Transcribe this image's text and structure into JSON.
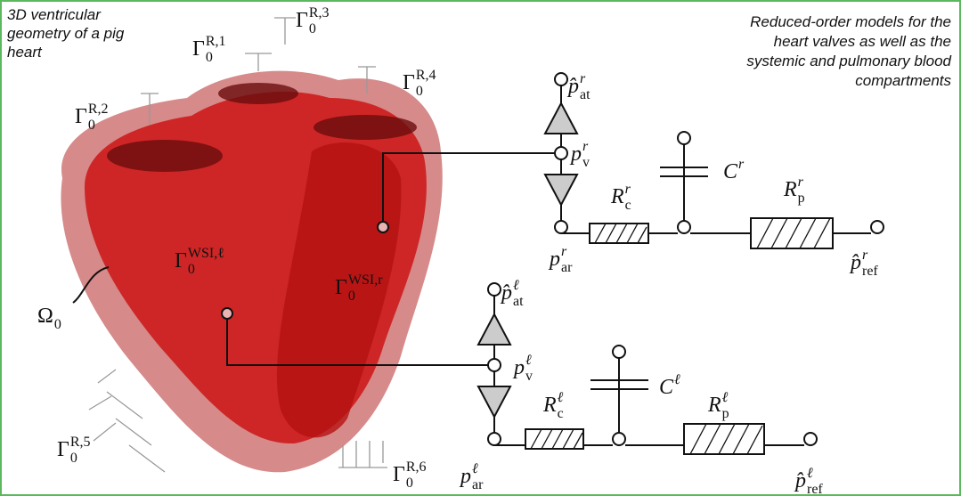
{
  "annotations": {
    "left": [
      "3D ventricular",
      "geometry of a pig",
      "heart"
    ],
    "right": [
      "Reduced-order models for the",
      "heart valves as well as the",
      "systemic and pulmonary blood",
      "compartments"
    ]
  },
  "heart": {
    "boundaries": [
      {
        "base": "Γ",
        "sub": "0",
        "sup": "R,1"
      },
      {
        "base": "Γ",
        "sub": "0",
        "sup": "R,2"
      },
      {
        "base": "Γ",
        "sub": "0",
        "sup": "R,3"
      },
      {
        "base": "Γ",
        "sub": "0",
        "sup": "R,4"
      },
      {
        "base": "Γ",
        "sub": "0",
        "sup": "R,5"
      },
      {
        "base": "Γ",
        "sub": "0",
        "sup": "R,6"
      },
      {
        "base": "Γ",
        "sub": "0",
        "sup": "WSI,ℓ"
      },
      {
        "base": "Γ",
        "sub": "0",
        "sup": "WSI,r"
      }
    ],
    "domain": {
      "base": "Ω",
      "sub": "0"
    }
  },
  "circuits": {
    "right": {
      "p_at": {
        "base": "p̂",
        "sup": "r",
        "sub": "at"
      },
      "p_v": {
        "base": "p",
        "sup": "r",
        "sub": "v"
      },
      "R_c": {
        "base": "R",
        "sup": "r",
        "sub": "c"
      },
      "C": {
        "base": "C",
        "sup": "r"
      },
      "R_p": {
        "base": "R",
        "sup": "r",
        "sub": "p"
      },
      "p_ar": {
        "base": "p",
        "sup": "r",
        "sub": "ar"
      },
      "p_ref": {
        "base": "p̂",
        "sup": "r",
        "sub": "ref"
      }
    },
    "left": {
      "p_at": {
        "base": "p̂",
        "sup": "ℓ",
        "sub": "at"
      },
      "p_v": {
        "base": "p",
        "sup": "ℓ",
        "sub": "v"
      },
      "R_c": {
        "base": "R",
        "sup": "ℓ",
        "sub": "c"
      },
      "C": {
        "base": "C",
        "sup": "ℓ"
      },
      "R_p": {
        "base": "R",
        "sup": "ℓ",
        "sub": "p"
      },
      "p_ar": {
        "base": "p",
        "sup": "ℓ",
        "sub": "ar"
      },
      "p_ref": {
        "base": "p̂",
        "sup": "ℓ",
        "sub": "ref"
      }
    }
  }
}
